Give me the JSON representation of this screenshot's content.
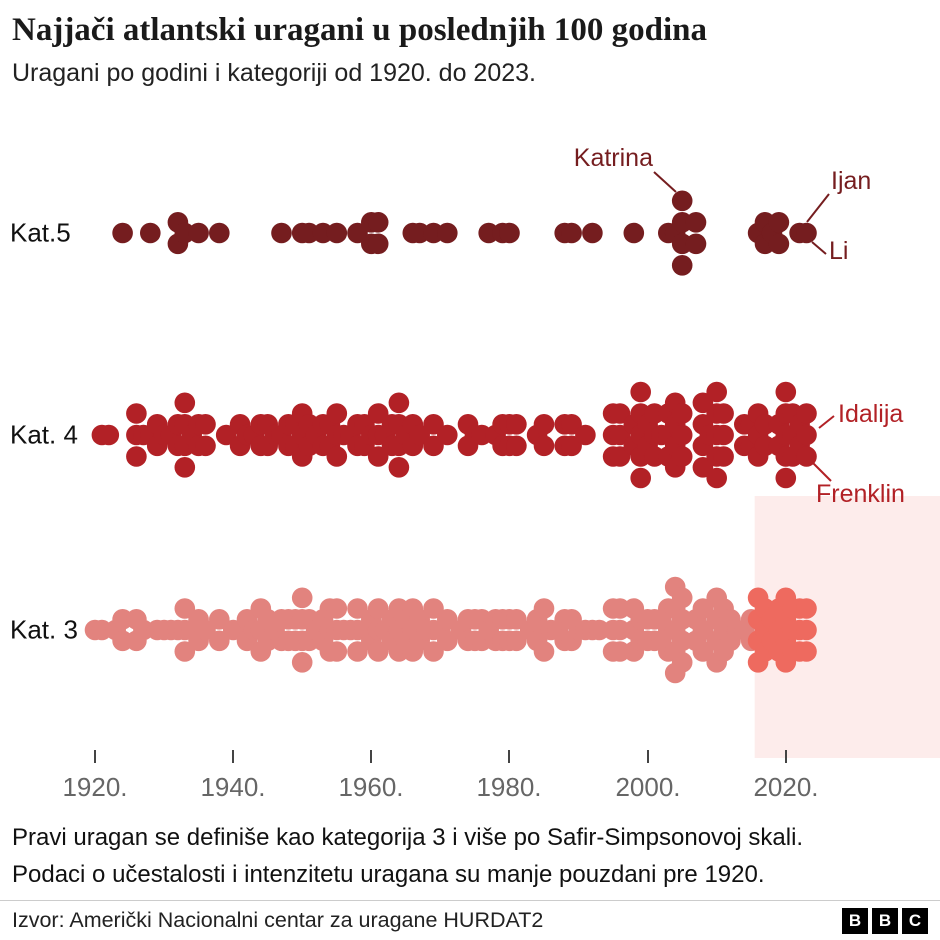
{
  "header": {
    "title": "Najjači atlantski uragani u poslednjih 100 godina",
    "subtitle": "Uragani po godini i kategoriji od 1920. do 2023."
  },
  "chart_data": {
    "type": "scatter",
    "subtype": "beeswarm-dot-strip-timeline",
    "title": "Najjači atlantski uragani u poslednjih 100 godina",
    "xlabel": "",
    "ylabel": "",
    "x_axis": {
      "tick_labels": [
        "1920.",
        "1940.",
        "1960.",
        "1980.",
        "2000.",
        "2020."
      ],
      "tick_years": [
        1920,
        1940,
        1960,
        1980,
        2000,
        2020
      ],
      "range": [
        1920,
        2023
      ]
    },
    "rows": [
      {
        "label": "Kat.5",
        "color": "#751d1f",
        "year_counts": [
          [
            1924,
            1
          ],
          [
            1928,
            1
          ],
          [
            1932,
            2
          ],
          [
            1933,
            1
          ],
          [
            1935,
            1
          ],
          [
            1938,
            1
          ],
          [
            1947,
            1
          ],
          [
            1950,
            1
          ],
          [
            1951,
            1
          ],
          [
            1953,
            1
          ],
          [
            1955,
            1
          ],
          [
            1958,
            1
          ],
          [
            1960,
            2
          ],
          [
            1961,
            2
          ],
          [
            1966,
            1
          ],
          [
            1967,
            1
          ],
          [
            1969,
            1
          ],
          [
            1971,
            1
          ],
          [
            1977,
            1
          ],
          [
            1979,
            1
          ],
          [
            1980,
            1
          ],
          [
            1988,
            1
          ],
          [
            1989,
            1
          ],
          [
            1992,
            1
          ],
          [
            1998,
            1
          ],
          [
            2003,
            1
          ],
          [
            2004,
            1
          ],
          [
            2005,
            4
          ],
          [
            2007,
            2
          ],
          [
            2016,
            1
          ],
          [
            2017,
            2
          ],
          [
            2018,
            1
          ],
          [
            2019,
            2
          ],
          [
            2022,
            1
          ],
          [
            2023,
            1
          ]
        ]
      },
      {
        "label": "Kat. 4",
        "color": "#b22126",
        "year_counts": [
          [
            1921,
            1
          ],
          [
            1922,
            1
          ],
          [
            1926,
            3
          ],
          [
            1927,
            1
          ],
          [
            1928,
            1
          ],
          [
            1929,
            2
          ],
          [
            1930,
            1
          ],
          [
            1931,
            1
          ],
          [
            1932,
            2
          ],
          [
            1933,
            4
          ],
          [
            1934,
            1
          ],
          [
            1935,
            2
          ],
          [
            1936,
            2
          ],
          [
            1939,
            1
          ],
          [
            1941,
            2
          ],
          [
            1942,
            1
          ],
          [
            1943,
            1
          ],
          [
            1944,
            2
          ],
          [
            1945,
            2
          ],
          [
            1946,
            1
          ],
          [
            1947,
            1
          ],
          [
            1948,
            2
          ],
          [
            1949,
            2
          ],
          [
            1950,
            3
          ],
          [
            1951,
            2
          ],
          [
            1952,
            1
          ],
          [
            1953,
            2
          ],
          [
            1954,
            2
          ],
          [
            1955,
            3
          ],
          [
            1956,
            1
          ],
          [
            1957,
            1
          ],
          [
            1958,
            2
          ],
          [
            1959,
            2
          ],
          [
            1960,
            1
          ],
          [
            1961,
            3
          ],
          [
            1962,
            1
          ],
          [
            1963,
            2
          ],
          [
            1964,
            4
          ],
          [
            1965,
            1
          ],
          [
            1966,
            2
          ],
          [
            1967,
            1
          ],
          [
            1969,
            2
          ],
          [
            1971,
            1
          ],
          [
            1974,
            2
          ],
          [
            1975,
            1
          ],
          [
            1976,
            1
          ],
          [
            1978,
            1
          ],
          [
            1979,
            2
          ],
          [
            1980,
            2
          ],
          [
            1981,
            2
          ],
          [
            1984,
            1
          ],
          [
            1985,
            2
          ],
          [
            1988,
            2
          ],
          [
            1989,
            2
          ],
          [
            1991,
            1
          ],
          [
            1995,
            3
          ],
          [
            1996,
            3
          ],
          [
            1998,
            2
          ],
          [
            1999,
            5
          ],
          [
            2000,
            2
          ],
          [
            2001,
            3
          ],
          [
            2002,
            1
          ],
          [
            2003,
            3
          ],
          [
            2004,
            4
          ],
          [
            2005,
            3
          ],
          [
            2008,
            4
          ],
          [
            2009,
            1
          ],
          [
            2010,
            5
          ],
          [
            2011,
            3
          ],
          [
            2014,
            2
          ],
          [
            2015,
            2
          ],
          [
            2016,
            3
          ],
          [
            2017,
            2
          ],
          [
            2019,
            2
          ],
          [
            2020,
            5
          ],
          [
            2021,
            3
          ],
          [
            2022,
            2
          ],
          [
            2023,
            3
          ]
        ]
      },
      {
        "label": "Kat. 3",
        "color": "#e2837e",
        "highlight_color": "#ee6a5f",
        "highlight_from_year": 2016,
        "year_counts": [
          [
            1920,
            1
          ],
          [
            1921,
            1
          ],
          [
            1923,
            1
          ],
          [
            1924,
            2
          ],
          [
            1926,
            2
          ],
          [
            1927,
            1
          ],
          [
            1929,
            1
          ],
          [
            1930,
            1
          ],
          [
            1931,
            1
          ],
          [
            1932,
            1
          ],
          [
            1933,
            3
          ],
          [
            1934,
            1
          ],
          [
            1935,
            2
          ],
          [
            1936,
            1
          ],
          [
            1938,
            2
          ],
          [
            1940,
            1
          ],
          [
            1941,
            1
          ],
          [
            1942,
            2
          ],
          [
            1943,
            1
          ],
          [
            1944,
            3
          ],
          [
            1945,
            2
          ],
          [
            1946,
            1
          ],
          [
            1947,
            2
          ],
          [
            1948,
            2
          ],
          [
            1949,
            2
          ],
          [
            1950,
            4
          ],
          [
            1951,
            2
          ],
          [
            1952,
            1
          ],
          [
            1953,
            2
          ],
          [
            1954,
            3
          ],
          [
            1955,
            3
          ],
          [
            1956,
            1
          ],
          [
            1957,
            1
          ],
          [
            1958,
            3
          ],
          [
            1959,
            1
          ],
          [
            1960,
            2
          ],
          [
            1961,
            3
          ],
          [
            1962,
            1
          ],
          [
            1963,
            2
          ],
          [
            1964,
            3
          ],
          [
            1965,
            2
          ],
          [
            1966,
            3
          ],
          [
            1967,
            2
          ],
          [
            1968,
            1
          ],
          [
            1969,
            3
          ],
          [
            1970,
            1
          ],
          [
            1971,
            2
          ],
          [
            1973,
            1
          ],
          [
            1974,
            2
          ],
          [
            1975,
            2
          ],
          [
            1976,
            2
          ],
          [
            1977,
            1
          ],
          [
            1978,
            2
          ],
          [
            1979,
            2
          ],
          [
            1980,
            2
          ],
          [
            1981,
            2
          ],
          [
            1983,
            1
          ],
          [
            1984,
            2
          ],
          [
            1985,
            3
          ],
          [
            1986,
            1
          ],
          [
            1987,
            1
          ],
          [
            1988,
            2
          ],
          [
            1989,
            2
          ],
          [
            1990,
            1
          ],
          [
            1991,
            1
          ],
          [
            1992,
            1
          ],
          [
            1993,
            1
          ],
          [
            1995,
            3
          ],
          [
            1996,
            3
          ],
          [
            1998,
            3
          ],
          [
            1999,
            2
          ],
          [
            2000,
            2
          ],
          [
            2001,
            2
          ],
          [
            2002,
            2
          ],
          [
            2003,
            3
          ],
          [
            2004,
            5
          ],
          [
            2005,
            4
          ],
          [
            2007,
            2
          ],
          [
            2008,
            3
          ],
          [
            2010,
            4
          ],
          [
            2011,
            3
          ],
          [
            2012,
            2
          ],
          [
            2013,
            1
          ],
          [
            2014,
            1
          ],
          [
            2015,
            2
          ],
          [
            2016,
            4
          ],
          [
            2017,
            3
          ],
          [
            2018,
            2
          ],
          [
            2019,
            3
          ],
          [
            2020,
            4
          ],
          [
            2021,
            3
          ],
          [
            2022,
            3
          ],
          [
            2023,
            3
          ]
        ]
      }
    ],
    "annotations": [
      {
        "label": "Katrina",
        "row": 0,
        "year": 2005,
        "dot": "top"
      },
      {
        "label": "Ijan",
        "row": 0,
        "year": 2022,
        "dot": "top"
      },
      {
        "label": "Li",
        "row": 0,
        "year": 2023,
        "dot": "bottom"
      },
      {
        "label": "Idalija",
        "row": 1,
        "year": 2023,
        "dot": "middle"
      },
      {
        "label": "Frenklin",
        "row": 1,
        "year": 2023,
        "dot": "bottom"
      }
    ],
    "highlight_band": {
      "from_year": 2015.5,
      "to_year": 2023,
      "color": "#fdeceb"
    },
    "legend": "none",
    "grid": "off"
  },
  "footnotes": [
    "Pravi uragan se definiše kao kategorija 3 i više po Safir-Simpsonovoj skali.",
    "Podaci o učestalosti i intenzitetu uragana su manje pouzdani pre 1920."
  ],
  "source": {
    "label": "Izvor: Američki Nacionalni centar za uragane HURDAT2"
  },
  "logo": {
    "letters": [
      "B",
      "B",
      "C"
    ]
  }
}
